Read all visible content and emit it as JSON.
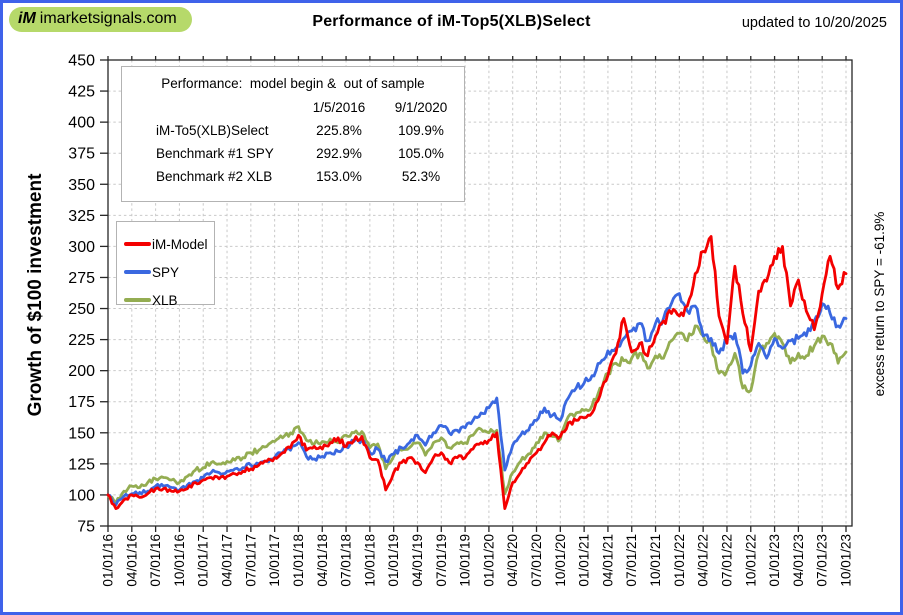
{
  "header": {
    "logo_im": "iM",
    "logo_text": "imarketsignals.com",
    "title": "Performance of iM-Top5(XLB)Select",
    "updated_label": "updated to",
    "updated_date": "10/20/2025"
  },
  "info_box": {
    "heading": "Performance:  model begin &  out of sample",
    "col_headers": [
      "1/5/2016",
      "9/1/2020"
    ],
    "rows": [
      {
        "label": "iM-To5(XLB)Select",
        "model_begin": "225.8%",
        "out_of_sample": "109.9%"
      },
      {
        "label": "Benchmark #1 SPY",
        "model_begin": "292.9%",
        "out_of_sample": "105.0%"
      },
      {
        "label": "Benchmark #2 XLB",
        "model_begin": "153.0%",
        "out_of_sample": "52.3%"
      }
    ]
  },
  "legend": [
    {
      "label": "iM-Model",
      "color": "#f40000"
    },
    {
      "label": "SPY",
      "color": "#3a68e0"
    },
    {
      "label": "XLB",
      "color": "#94ad52"
    }
  ],
  "right_annotation": "excess return to SPY = -61.9%",
  "colors": {
    "border_blue": "#3f62ea",
    "logo_green": "#b6d96a",
    "gridline": "#c9c9c9",
    "axis": "#262626"
  },
  "chart_data": {
    "type": "line",
    "title": "Performance of iM-Top5(XLB)Select",
    "xlabel": "",
    "ylabel": "Growth of $100 investment",
    "ylim": [
      75,
      450
    ],
    "y_ticks": [
      75,
      100,
      125,
      150,
      175,
      200,
      225,
      250,
      275,
      300,
      325,
      350,
      375,
      400,
      425,
      450
    ],
    "grid": true,
    "legend_position": "upper-left",
    "x_frequency": "monthly",
    "x_start": "2016-01",
    "x_end": "2023-10",
    "x_tick_labels": [
      "01/01/16",
      "04/01/16",
      "07/01/16",
      "10/01/16",
      "01/01/17",
      "04/01/17",
      "07/01/17",
      "10/01/17",
      "01/01/18",
      "04/01/18",
      "07/01/18",
      "10/01/18",
      "01/01/19",
      "04/01/19",
      "07/01/19",
      "10/01/19",
      "01/01/20",
      "04/01/20",
      "07/01/20",
      "10/01/20",
      "01/01/21",
      "04/01/21",
      "07/01/21",
      "10/01/21",
      "01/01/22",
      "04/01/22",
      "07/01/22",
      "10/01/22",
      "01/01/23",
      "04/01/23",
      "07/01/23",
      "10/01/23"
    ],
    "series": [
      {
        "name": "iM-Model",
        "color": "#f40000",
        "values": [
          100,
          89,
          96,
          100,
          98,
          101,
          105,
          105,
          103,
          103,
          105,
          110,
          112,
          114,
          113,
          115,
          117,
          119,
          121,
          124,
          127,
          130,
          134,
          138,
          148,
          136,
          139,
          137,
          142,
          146,
          139,
          144,
          147,
          130,
          128,
          104,
          118,
          126,
          130,
          126,
          118,
          130,
          134,
          126,
          130,
          130,
          137,
          142,
          144,
          150,
          89,
          110,
          118,
          126,
          134,
          142,
          150,
          147,
          158,
          160,
          162,
          166,
          180,
          196,
          214,
          242,
          215,
          222,
          212,
          228,
          240,
          246,
          244,
          252,
          278,
          296,
          308,
          244,
          222,
          284,
          246,
          216,
          264,
          272,
          292,
          300,
          252,
          273,
          248,
          233,
          262,
          292,
          266,
          278
        ]
      },
      {
        "name": "SPY",
        "color": "#3a68e0",
        "values": [
          100,
          92,
          99,
          101,
          102,
          103,
          107,
          107,
          106,
          104,
          108,
          111,
          114,
          118,
          118,
          119,
          121,
          122,
          124,
          125,
          127,
          130,
          134,
          136,
          142,
          131,
          129,
          131,
          134,
          135,
          139,
          143,
          144,
          134,
          137,
          127,
          133,
          138,
          142,
          148,
          140,
          150,
          156,
          150,
          152,
          154,
          160,
          166,
          170,
          178,
          120,
          140,
          148,
          152,
          160,
          170,
          164,
          160,
          178,
          186,
          190,
          196,
          206,
          216,
          218,
          226,
          232,
          238,
          224,
          238,
          242,
          254,
          262,
          248,
          252,
          228,
          226,
          214,
          226,
          230,
          198,
          204,
          222,
          210,
          226,
          218,
          224,
          226,
          228,
          240,
          254,
          246,
          236,
          242
        ]
      },
      {
        "name": "XLB",
        "color": "#94ad52",
        "values": [
          100,
          94,
          103,
          107,
          106,
          110,
          113,
          114,
          112,
          110,
          115,
          120,
          122,
          126,
          125,
          127,
          128,
          130,
          134,
          136,
          139,
          143,
          146,
          150,
          155,
          144,
          141,
          143,
          145,
          142,
          148,
          150,
          151,
          138,
          141,
          121,
          131,
          136,
          138,
          142,
          132,
          142,
          146,
          138,
          142,
          142,
          148,
          153,
          150,
          152,
          101,
          118,
          127,
          133,
          142,
          150,
          147,
          145,
          163,
          166,
          168,
          172,
          186,
          198,
          206,
          208,
          210,
          214,
          202,
          212,
          210,
          224,
          230,
          224,
          236,
          228,
          222,
          198,
          200,
          214,
          186,
          184,
          214,
          222,
          230,
          222,
          206,
          214,
          212,
          220,
          228,
          222,
          206,
          215
        ]
      }
    ]
  }
}
